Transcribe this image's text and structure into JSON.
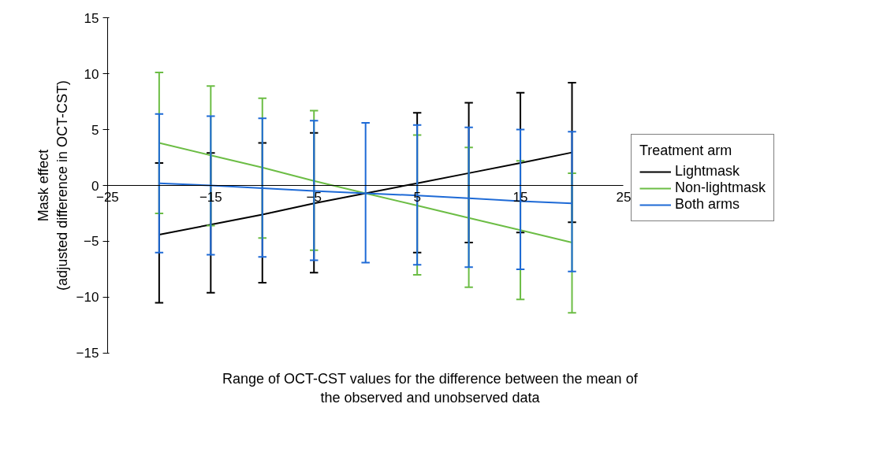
{
  "chart_data": {
    "type": "line",
    "xlabel": "Range of OCT-CST values for the difference between the mean of\nthe observed and unobserved data",
    "ylabel": "Mask effect\n(adjusted difference in OCT-CST)",
    "legend_title": "Treatment arm",
    "legend": "right",
    "grid": false,
    "marker": "none",
    "line_style": "solid",
    "x": [
      -20,
      -15,
      -10,
      -5,
      0,
      5,
      10,
      15,
      20
    ],
    "xlim": [
      -25,
      25
    ],
    "xticks": [
      {
        "value": -25,
        "label": "−25"
      },
      {
        "value": -15,
        "label": "−15"
      },
      {
        "value": -5,
        "label": "−5"
      },
      5,
      15,
      25
    ],
    "ylim": [
      -15,
      15
    ],
    "yticks": [
      {
        "value": -15,
        "label": "−15"
      },
      {
        "value": -10,
        "label": "−10"
      },
      {
        "value": -5,
        "label": "−5"
      },
      0,
      5,
      10,
      15
    ],
    "series": [
      {
        "name": "Lightmask",
        "color": "#000000",
        "values": [
          -4.4,
          -3.5,
          -2.6,
          -1.6,
          -0.7,
          0.2,
          1.1,
          2.0,
          2.95
        ],
        "errors": [
          [
            -10.5,
            2.0
          ],
          [
            -9.6,
            2.9
          ],
          [
            -8.7,
            3.8
          ],
          [
            -7.8,
            4.7
          ],
          null,
          [
            -6.0,
            6.5
          ],
          [
            -5.1,
            7.4
          ],
          [
            -4.2,
            8.3
          ],
          [
            -3.3,
            9.2
          ]
        ]
      },
      {
        "name": "Non-lightmask",
        "color": "#6cbd45",
        "values": [
          3.8,
          2.7,
          1.6,
          0.4,
          -0.7,
          -1.8,
          -2.9,
          -4.0,
          -5.1
        ],
        "errors": [
          [
            -2.5,
            10.1
          ],
          [
            -3.6,
            8.9
          ],
          [
            -4.7,
            7.8
          ],
          [
            -5.8,
            6.7
          ],
          null,
          [
            -8.0,
            4.5
          ],
          [
            -9.1,
            3.4
          ],
          [
            -10.2,
            2.2
          ],
          [
            -11.4,
            1.1
          ]
        ]
      },
      {
        "name": "Both arms",
        "color": "#1e6ad6",
        "values": [
          0.2,
          0.0,
          -0.25,
          -0.5,
          -0.7,
          -0.9,
          -1.15,
          -1.4,
          -1.6
        ],
        "errors": [
          [
            -6.0,
            6.4
          ],
          [
            -6.2,
            6.2
          ],
          [
            -6.4,
            6.0
          ],
          [
            -6.7,
            5.8
          ],
          [
            -6.9,
            5.6
          ],
          [
            -7.1,
            5.4
          ],
          [
            -7.3,
            5.2
          ],
          [
            -7.5,
            5.0
          ],
          [
            -7.7,
            4.8
          ]
        ]
      }
    ]
  }
}
